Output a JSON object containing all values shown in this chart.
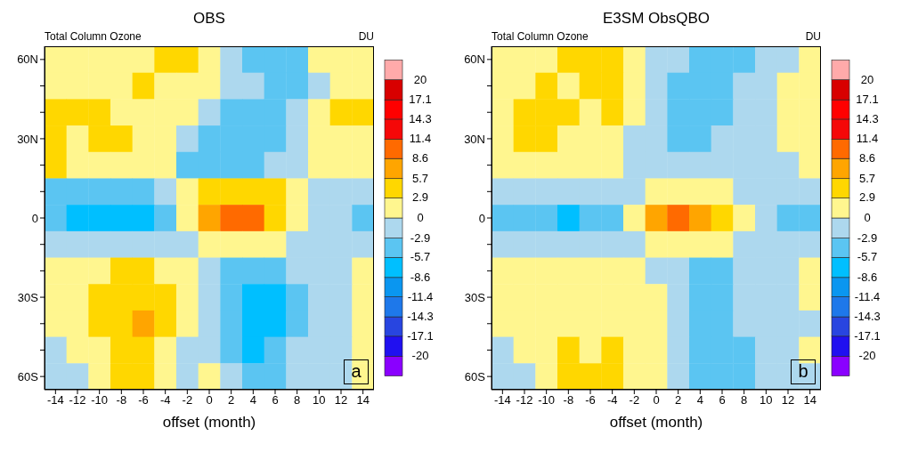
{
  "chart_data": [
    {
      "type": "heatmap",
      "title": "OBS",
      "xlabel": "offset (month)",
      "annotations": [
        "Total Column Ozone",
        "DU",
        "a"
      ],
      "categories": [
        "-14",
        "-12",
        "-10",
        "-8",
        "-6",
        "-4",
        "-2",
        "0",
        "2",
        "4",
        "6",
        "8",
        "10",
        "12",
        "14"
      ],
      "y_categories": [
        "60N",
        null,
        null,
        "30N",
        null,
        null,
        "0",
        null,
        null,
        "30S",
        null,
        null,
        "60S"
      ],
      "cells": [
        [
          1.5,
          1.5,
          1.5,
          1.5,
          1.5,
          4.3,
          4.3,
          1.5,
          -1.5,
          -4.3,
          -4.3,
          -4.3,
          1.5,
          1.5,
          1.5
        ],
        [
          1.5,
          1.5,
          1.5,
          1.5,
          4.3,
          1.5,
          1.5,
          1.5,
          -1.5,
          -1.5,
          -4.3,
          -4.3,
          -1.5,
          1.5,
          1.5
        ],
        [
          4.3,
          4.3,
          4.3,
          1.5,
          1.5,
          1.5,
          1.5,
          -1.5,
          -4.3,
          -4.3,
          -4.3,
          -1.5,
          1.5,
          4.3,
          4.3
        ],
        [
          4.3,
          1.5,
          4.3,
          4.3,
          1.5,
          1.5,
          -1.5,
          -4.3,
          -4.3,
          -4.3,
          -4.3,
          -1.5,
          1.5,
          1.5,
          1.5
        ],
        [
          4.3,
          1.5,
          1.5,
          1.5,
          1.5,
          1.5,
          -4.3,
          -4.3,
          -4.3,
          -4.3,
          -1.5,
          -1.5,
          1.5,
          1.5,
          1.5
        ],
        [
          -4.3,
          -4.3,
          -4.3,
          -4.3,
          -4.3,
          -1.5,
          1.5,
          4.3,
          4.3,
          4.3,
          4.3,
          1.5,
          -1.5,
          -1.5,
          -1.5
        ],
        [
          -4.3,
          -7.1,
          -7.1,
          -7.1,
          -7.1,
          -4.3,
          1.5,
          7.1,
          10,
          10,
          4.3,
          1.5,
          -1.5,
          -1.5,
          -4.3
        ],
        [
          -1.5,
          -1.5,
          -1.5,
          -1.5,
          -1.5,
          -1.5,
          -1.5,
          1.5,
          1.5,
          1.5,
          1.5,
          -1.5,
          -1.5,
          -1.5,
          -1.5
        ],
        [
          1.5,
          1.5,
          1.5,
          4.3,
          4.3,
          1.5,
          1.5,
          -1.5,
          -4.3,
          -4.3,
          -4.3,
          -1.5,
          -1.5,
          -1.5,
          1.5
        ],
        [
          1.5,
          1.5,
          4.3,
          4.3,
          4.3,
          4.3,
          1.5,
          -1.5,
          -4.3,
          -7.1,
          -7.1,
          -4.3,
          -1.5,
          -1.5,
          1.5
        ],
        [
          1.5,
          1.5,
          4.3,
          4.3,
          7.1,
          4.3,
          1.5,
          -1.5,
          -4.3,
          -7.1,
          -7.1,
          -4.3,
          -1.5,
          -1.5,
          1.5
        ],
        [
          -1.5,
          1.5,
          1.5,
          4.3,
          4.3,
          1.5,
          -1.5,
          -1.5,
          -4.3,
          -7.1,
          -4.3,
          -1.5,
          -1.5,
          -1.5,
          1.5
        ],
        [
          -1.5,
          -1.5,
          1.5,
          4.3,
          4.3,
          1.5,
          -1.5,
          1.5,
          -1.5,
          -4.3,
          -4.3,
          -1.5,
          -1.5,
          -1.5,
          1.5
        ]
      ],
      "colors": [
        "#8a00ff",
        "#2010f0",
        "#2845e0",
        "#1e78ea",
        "#0a96f0",
        "#00bfff",
        "#5bc5f2",
        "#add8ee",
        "#fff68f",
        "#ffd700",
        "#ffa500",
        "#ff6a00",
        "#f50808",
        "#ff0000",
        "#d80000",
        "#ffaaaa"
      ],
      "clim": [
        -20,
        20
      ],
      "cticks": [
        -20,
        -17.1,
        -14.3,
        -11.4,
        -8.6,
        -5.7,
        -2.9,
        0,
        2.9,
        5.7,
        8.6,
        11.4,
        14.3,
        17.1,
        20
      ]
    },
    {
      "type": "heatmap",
      "title": "E3SM ObsQBO",
      "xlabel": "offset (month)",
      "annotations": [
        "Total Column Ozone",
        "DU",
        "b"
      ],
      "categories": [
        "-14",
        "-12",
        "-10",
        "-8",
        "-6",
        "-4",
        "-2",
        "0",
        "2",
        "4",
        "6",
        "8",
        "10",
        "12",
        "14"
      ],
      "y_categories": [
        "60N",
        null,
        null,
        "30N",
        null,
        null,
        "0",
        null,
        null,
        "30S",
        null,
        null,
        "60S"
      ],
      "cells": [
        [
          1.5,
          1.5,
          1.5,
          4.3,
          4.3,
          4.3,
          1.5,
          -1.5,
          -1.5,
          -4.3,
          -4.3,
          -4.3,
          -1.5,
          -1.5,
          1.5
        ],
        [
          1.5,
          1.5,
          4.3,
          1.5,
          4.3,
          4.3,
          1.5,
          -1.5,
          -4.3,
          -4.3,
          -4.3,
          -1.5,
          -1.5,
          1.5,
          1.5
        ],
        [
          1.5,
          4.3,
          4.3,
          4.3,
          1.5,
          4.3,
          1.5,
          -1.5,
          -4.3,
          -4.3,
          -4.3,
          -1.5,
          -1.5,
          1.5,
          1.5
        ],
        [
          1.5,
          4.3,
          4.3,
          1.5,
          1.5,
          1.5,
          -1.5,
          -1.5,
          -4.3,
          -4.3,
          -1.5,
          -1.5,
          -1.5,
          1.5,
          1.5
        ],
        [
          1.5,
          1.5,
          1.5,
          1.5,
          1.5,
          1.5,
          -1.5,
          -1.5,
          -1.5,
          -1.5,
          -1.5,
          -1.5,
          -1.5,
          -1.5,
          1.5
        ],
        [
          -1.5,
          -1.5,
          -1.5,
          -1.5,
          -1.5,
          -1.5,
          -1.5,
          1.5,
          1.5,
          1.5,
          1.5,
          -1.5,
          -1.5,
          -1.5,
          -1.5
        ],
        [
          -4.3,
          -4.3,
          -4.3,
          -7.1,
          -4.3,
          -4.3,
          1.5,
          7.1,
          10,
          7.1,
          4.3,
          1.5,
          -1.5,
          -4.3,
          -4.3
        ],
        [
          -1.5,
          -1.5,
          -1.5,
          -1.5,
          -1.5,
          -1.5,
          -1.5,
          1.5,
          1.5,
          1.5,
          1.5,
          -1.5,
          -1.5,
          -1.5,
          -1.5
        ],
        [
          1.5,
          1.5,
          1.5,
          1.5,
          1.5,
          1.5,
          1.5,
          -1.5,
          -1.5,
          -4.3,
          -4.3,
          -1.5,
          -1.5,
          -1.5,
          1.5
        ],
        [
          1.5,
          1.5,
          1.5,
          1.5,
          1.5,
          1.5,
          1.5,
          1.5,
          -1.5,
          -4.3,
          -4.3,
          -1.5,
          -1.5,
          -1.5,
          1.5
        ],
        [
          1.5,
          1.5,
          1.5,
          1.5,
          1.5,
          1.5,
          1.5,
          1.5,
          -1.5,
          -4.3,
          -4.3,
          -1.5,
          -1.5,
          -1.5,
          -1.5
        ],
        [
          -1.5,
          1.5,
          1.5,
          4.3,
          1.5,
          4.3,
          1.5,
          1.5,
          -1.5,
          -4.3,
          -4.3,
          -4.3,
          -1.5,
          -1.5,
          1.5
        ],
        [
          -1.5,
          -1.5,
          1.5,
          4.3,
          4.3,
          4.3,
          1.5,
          1.5,
          -1.5,
          -4.3,
          -4.3,
          -4.3,
          -1.5,
          -1.5,
          -1.5
        ]
      ],
      "colors": [
        "#8a00ff",
        "#2010f0",
        "#2845e0",
        "#1e78ea",
        "#0a96f0",
        "#00bfff",
        "#5bc5f2",
        "#add8ee",
        "#fff68f",
        "#ffd700",
        "#ffa500",
        "#ff6a00",
        "#f50808",
        "#ff0000",
        "#d80000",
        "#ffaaaa"
      ],
      "clim": [
        -20,
        20
      ],
      "cticks": [
        -20,
        -17.1,
        -14.3,
        -11.4,
        -8.6,
        -5.7,
        -2.9,
        0,
        2.9,
        5.7,
        8.6,
        11.4,
        14.3,
        17.1,
        20
      ]
    }
  ]
}
